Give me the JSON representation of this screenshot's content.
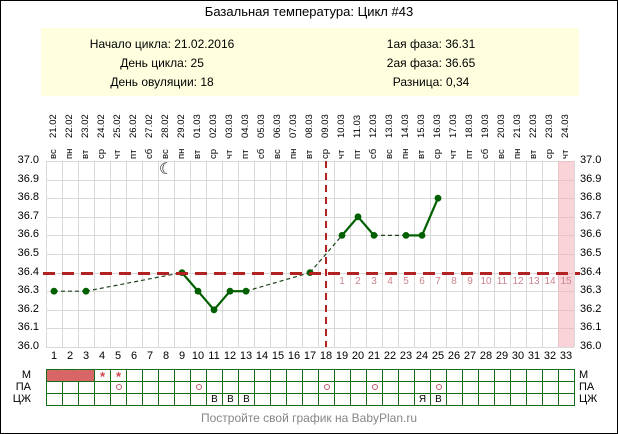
{
  "header": {
    "title": "Базальная температура: Цикл #43"
  },
  "info": {
    "left": [
      {
        "label": "Начало цикла:",
        "value": "21.02.2016"
      },
      {
        "label": "День цикла:",
        "value": "25"
      },
      {
        "label": "День овуляции:",
        "value": "18"
      }
    ],
    "right": [
      {
        "label": "1ая фаза:",
        "value": "36.31"
      },
      {
        "label": "2ая фаза:",
        "value": "36.65"
      },
      {
        "label": "Разница:",
        "value": "0,34"
      }
    ]
  },
  "footer": {
    "text": "Постройте свой график на BabyPlan.ru"
  },
  "chart_data": {
    "type": "line",
    "title": "Базальная температура: Цикл #43",
    "ylim": [
      36.0,
      37.0
    ],
    "ytick_labels": [
      "37.0",
      "36.9",
      "36.8",
      "36.7",
      "36.6",
      "36.5",
      "36.4",
      "36.3",
      "36.2",
      "36.1",
      "36.0"
    ],
    "day_numbers": [
      1,
      2,
      3,
      4,
      5,
      6,
      7,
      8,
      9,
      10,
      11,
      12,
      13,
      14,
      15,
      16,
      17,
      18,
      19,
      20,
      21,
      22,
      23,
      24,
      25,
      26,
      27,
      28,
      29,
      30,
      31,
      32,
      33
    ],
    "dates": [
      "21.02",
      "22.02",
      "23.02",
      "24.02",
      "25.02",
      "26.02",
      "27.02",
      "28.02",
      "29.02",
      "01.03",
      "02.03",
      "03.03",
      "04.03",
      "05.03",
      "06.03",
      "07.03",
      "08.03",
      "09.03",
      "10.03",
      "11.03",
      "12.03",
      "13.03",
      "14.03",
      "15.03",
      "16.03",
      "17.03",
      "18.03",
      "19.03",
      "20.03",
      "21.03",
      "22.03",
      "23.03",
      "24.03"
    ],
    "weekdays": [
      "вс",
      "пн",
      "вт",
      "ср",
      "чт",
      "пт",
      "сб",
      "вс",
      "пн",
      "вт",
      "ср",
      "чт",
      "пт",
      "сб",
      "вс",
      "пн",
      "вт",
      "ср",
      "чт",
      "пт",
      "сб",
      "вс",
      "пн",
      "вт",
      "ср",
      "чт",
      "пт",
      "сб",
      "вс",
      "пн",
      "вт",
      "ср",
      "чт"
    ],
    "temps": [
      36.3,
      null,
      36.3,
      null,
      null,
      null,
      null,
      null,
      36.4,
      36.3,
      36.2,
      36.3,
      36.3,
      null,
      null,
      null,
      36.4,
      null,
      36.6,
      36.7,
      36.6,
      null,
      36.6,
      36.6,
      36.8,
      null,
      null,
      null,
      null,
      null,
      null,
      null,
      null
    ],
    "coverline_temp": 36.4,
    "ovulation_day": 18,
    "cycle_day_highlight": 33,
    "moon_icon_day": 8,
    "moon_icon": "☾",
    "dpo_start_day": 19,
    "dpo_labels": [
      "1",
      "2",
      "3",
      "4",
      "5",
      "6",
      "7",
      "8",
      "9",
      "10",
      "11",
      "12",
      "13",
      "14",
      "15"
    ],
    "grid": true,
    "bottom_rows": {
      "labels": [
        "М",
        "ПА",
        "ЦЖ"
      ],
      "menstruation_filled_days": [
        1,
        2,
        3
      ],
      "menstruation_star_days": [
        4,
        5
      ],
      "star_symbol": "*",
      "intercourse_days": [
        5,
        10,
        18,
        21,
        25
      ],
      "fluid_entries": [
        {
          "day": 11,
          "letter": "В"
        },
        {
          "day": 12,
          "letter": "В"
        },
        {
          "day": 13,
          "letter": "В"
        },
        {
          "day": 24,
          "letter": "Я"
        },
        {
          "day": 25,
          "letter": "В"
        }
      ]
    },
    "colors": {
      "line": "#006000",
      "gap_line": "#1e431e",
      "marker": "#006000",
      "coverline": "#b22222",
      "ovulation_line": "#b22222",
      "dpo_text": "#c9848e",
      "highlight_band": "#f5aeb8",
      "grid": "#d9d9d9",
      "table_border": "#156e15",
      "mens_fill": "#d96666",
      "star": "#cf3f4f",
      "pa_circle": "#c25a6a",
      "info_bg": "#ffffe0",
      "footer_text": "#868686"
    }
  }
}
